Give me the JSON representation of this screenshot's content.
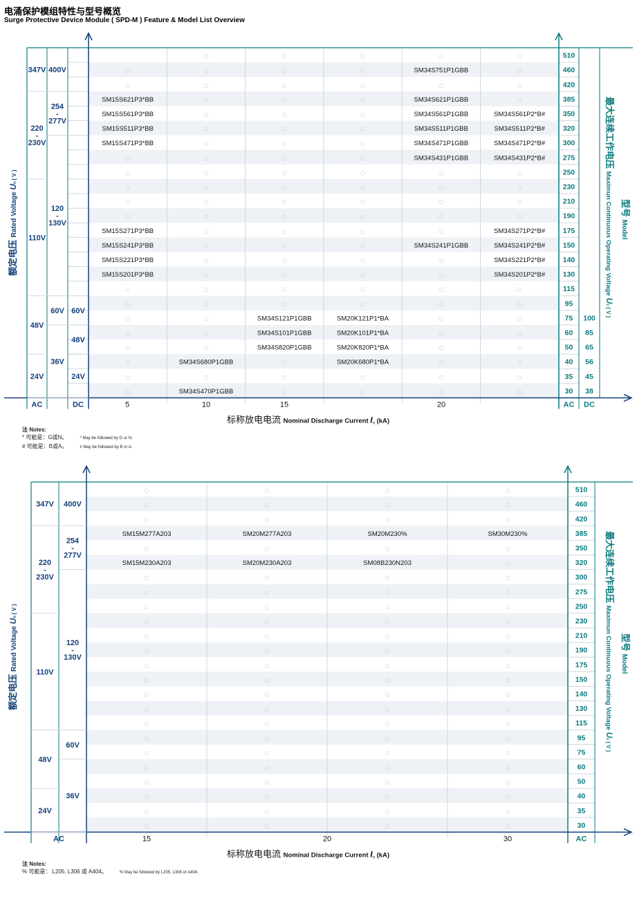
{
  "title_cn": "电涌保护模组特性与型号概览",
  "title_en": "Surge Protective Device Module ( SPD-M ) Feature & Model List Overview",
  "empty_mark": "○",
  "colors": {
    "navy": "#13407a",
    "teal": "#0a7a7e",
    "stripe": "#eef1f5",
    "grid": "#cfd6de"
  },
  "mcov_values": [
    "510",
    "460",
    "420",
    "385",
    "350",
    "320",
    "300",
    "275",
    "250",
    "230",
    "210",
    "190",
    "175",
    "150",
    "140",
    "130",
    "115",
    "95",
    "75",
    "60",
    "50",
    "40",
    "35",
    "30"
  ],
  "axis_labels": {
    "rated_cn": "额定电压",
    "rated_en": "Rated Voltage",
    "rated_sym": "U",
    "rated_sub": "n",
    "rated_unit": "( V )",
    "mcov_cn": "最大连续工作电压",
    "mcov_en": "Maximun Continuous Operating Voltage",
    "mcov_sym": "U",
    "mcov_sub": "c",
    "mcov_unit": "( V )",
    "model_cn": "型号",
    "model_en": "Model",
    "x_cn": "标称放电电流",
    "x_en": "Nominal Discharge Current",
    "x_sym": "I",
    "x_sub": "n",
    "x_unit": "(kA)",
    "ac": "AC",
    "dc": "DC"
  },
  "chart1": {
    "x_ticks": [
      "5",
      "10",
      "15",
      "20"
    ],
    "dc_values": [
      "",
      "",
      "",
      "",
      "",
      "",
      "",
      "",
      "",
      "",
      "",
      "",
      "",
      "",
      "",
      "",
      "",
      "",
      "100",
      "85",
      "65",
      "56",
      "45",
      "38"
    ],
    "ac_groups": [
      {
        "label": "347V",
        "rows": [
          0,
          2
        ]
      },
      {
        "label": "220\n-\n230V",
        "rows": [
          3,
          8
        ]
      },
      {
        "label": "110V",
        "rows": [
          9,
          16
        ]
      },
      {
        "label": "48V",
        "rows": [
          17,
          20
        ]
      },
      {
        "label": "24V",
        "rows": [
          21,
          23
        ]
      }
    ],
    "ac_sub_groups": [
      {
        "label": "400V",
        "rows": [
          0,
          2
        ]
      },
      {
        "label": "254\n-\n277V",
        "rows": [
          3,
          5
        ]
      },
      {
        "label": "120\n-\n130V",
        "rows": [
          6,
          16
        ]
      },
      {
        "label": "60V",
        "rows": [
          17,
          18
        ]
      },
      {
        "label": "36V",
        "rows": [
          19,
          23
        ]
      }
    ],
    "dc_groups": [
      {
        "label": "60V",
        "rows": [
          17,
          18
        ]
      },
      {
        "label": "48V",
        "rows": [
          19,
          20
        ]
      },
      {
        "label": "24V",
        "rows": [
          21,
          23
        ]
      }
    ],
    "columns": 6,
    "cells": [
      [
        "",
        "",
        "",
        "",
        "",
        ""
      ],
      [
        "",
        "",
        "",
        "",
        "SM34S751P1GBB",
        ""
      ],
      [
        "",
        "",
        "",
        "",
        "",
        ""
      ],
      [
        "SM15S621P3*BB",
        "",
        "",
        "",
        "SM34S621P1GBB",
        ""
      ],
      [
        "SM15S561P3*BB",
        "",
        "",
        "",
        "SM34S561P1GBB",
        "SM34S561P2*B#"
      ],
      [
        "SM15S511P3*BB",
        "",
        "",
        "",
        "SM34S511P1GBB",
        "SM34S511P2*B#"
      ],
      [
        "SM15S471P3*BB",
        "",
        "",
        "",
        "SM34S471P1GBB",
        "SM34S471P2*B#"
      ],
      [
        "",
        "",
        "",
        "",
        "SM34S431P1GBB",
        "SM34S431P2*B#"
      ],
      [
        "",
        "",
        "",
        "",
        "",
        ""
      ],
      [
        "",
        "",
        "",
        "",
        "",
        ""
      ],
      [
        "",
        "",
        "",
        "",
        "",
        ""
      ],
      [
        "",
        "",
        "",
        "",
        "",
        ""
      ],
      [
        "SM15S271P3*BB",
        "",
        "",
        "",
        "",
        "SM34S271P2*B#"
      ],
      [
        "SM15S241P3*BB",
        "",
        "",
        "",
        "SM34S241P1GBB",
        "SM34S241P2*B#"
      ],
      [
        "SM15S221P3*BB",
        "",
        "",
        "",
        "",
        "SM34S221P2*B#"
      ],
      [
        "SM15S201P3*BB",
        "",
        "",
        "",
        "",
        "SM34S201P2*B#"
      ],
      [
        "",
        "",
        "",
        "",
        "",
        ""
      ],
      [
        "",
        "",
        "",
        "",
        "",
        ""
      ],
      [
        "",
        "",
        "SM34S121P1GBB",
        "SM20K121P1*BA",
        "",
        ""
      ],
      [
        "",
        "",
        "SM34S101P1GBB",
        "SM20K101P1*BA",
        "",
        ""
      ],
      [
        "",
        "",
        "SM34S820P1GBB",
        "SM20K820P1*BA",
        "",
        ""
      ],
      [
        "",
        "SM34S680P1GBB",
        "",
        "SM20K680P1*BA",
        "",
        ""
      ],
      [
        "",
        "",
        "",
        "",
        "",
        ""
      ],
      [
        "",
        "SM34S470P1GBB",
        "",
        "",
        "",
        ""
      ]
    ],
    "empty_cells": [
      [
        "",
        1,
        1,
        1,
        1,
        1
      ],
      [
        1,
        1,
        1,
        1,
        "",
        1
      ],
      [
        1,
        1,
        1,
        1,
        1,
        1
      ],
      [
        "",
        1,
        1,
        1,
        "",
        1
      ],
      [
        "",
        1,
        1,
        1,
        "",
        ""
      ],
      [
        "",
        1,
        1,
        1,
        "",
        ""
      ],
      [
        "",
        1,
        1,
        1,
        "",
        ""
      ],
      [
        1,
        1,
        1,
        1,
        "",
        ""
      ],
      [
        1,
        1,
        1,
        1,
        1,
        1
      ],
      [
        1,
        1,
        1,
        1,
        1,
        1
      ],
      [
        1,
        1,
        1,
        1,
        1,
        1
      ],
      [
        1,
        1,
        1,
        1,
        1,
        1
      ],
      [
        "",
        1,
        1,
        1,
        1,
        ""
      ],
      [
        "",
        1,
        1,
        1,
        "",
        ""
      ],
      [
        "",
        1,
        1,
        1,
        1,
        ""
      ],
      [
        "",
        1,
        1,
        1,
        1,
        ""
      ],
      [
        1,
        1,
        1,
        1,
        1,
        1
      ],
      [
        1,
        1,
        1,
        1,
        1,
        1
      ],
      [
        1,
        1,
        "",
        "",
        1,
        1
      ],
      [
        1,
        1,
        "",
        "",
        1,
        1
      ],
      [
        1,
        1,
        "",
        "",
        1,
        1
      ],
      [
        1,
        "",
        1,
        "",
        1,
        1
      ],
      [
        1,
        1,
        1,
        1,
        1,
        1
      ],
      [
        1,
        "",
        1,
        1,
        1,
        1
      ]
    ],
    "notes_title": "注 Notes:",
    "notes": [
      {
        "cn": "* 可能是：G或N。",
        "en": "* May be followed by G or N."
      },
      {
        "cn": "# 可能是：B或A。",
        "en": "# May be followed by B or A."
      }
    ]
  },
  "chart2": {
    "x_ticks": [
      "15",
      "20",
      "30"
    ],
    "ac_groups": [
      {
        "label": "347V",
        "rows": [
          0,
          2
        ]
      },
      {
        "label": "220\n-\n230V",
        "rows": [
          3,
          8
        ]
      },
      {
        "label": "110V",
        "rows": [
          9,
          16
        ]
      },
      {
        "label": "48V",
        "rows": [
          17,
          20
        ]
      },
      {
        "label": "24V",
        "rows": [
          21,
          23
        ]
      }
    ],
    "ac_sub_groups": [
      {
        "label": "400V",
        "rows": [
          0,
          2
        ]
      },
      {
        "label": "254\n-\n277V",
        "rows": [
          3,
          5
        ]
      },
      {
        "label": "120\n-\n130V",
        "rows": [
          6,
          16
        ]
      },
      {
        "label": "60V",
        "rows": [
          17,
          18
        ]
      },
      {
        "label": "36V",
        "rows": [
          19,
          23
        ]
      }
    ],
    "columns": 4,
    "cells_by_row": {
      "3": [
        "SM15M277A203",
        "SM20M277A203",
        "SM20M230%",
        "SM30M230%"
      ],
      "5": [
        "SM15M230A203",
        "SM20M230A203",
        "SM08B230N203",
        ""
      ]
    },
    "notes_title": "注 Notes:",
    "notes": [
      {
        "cn": "% 可能是： L205, L306 或 A404。",
        "en": "% May be followed by L205, L306 or A404."
      }
    ]
  }
}
